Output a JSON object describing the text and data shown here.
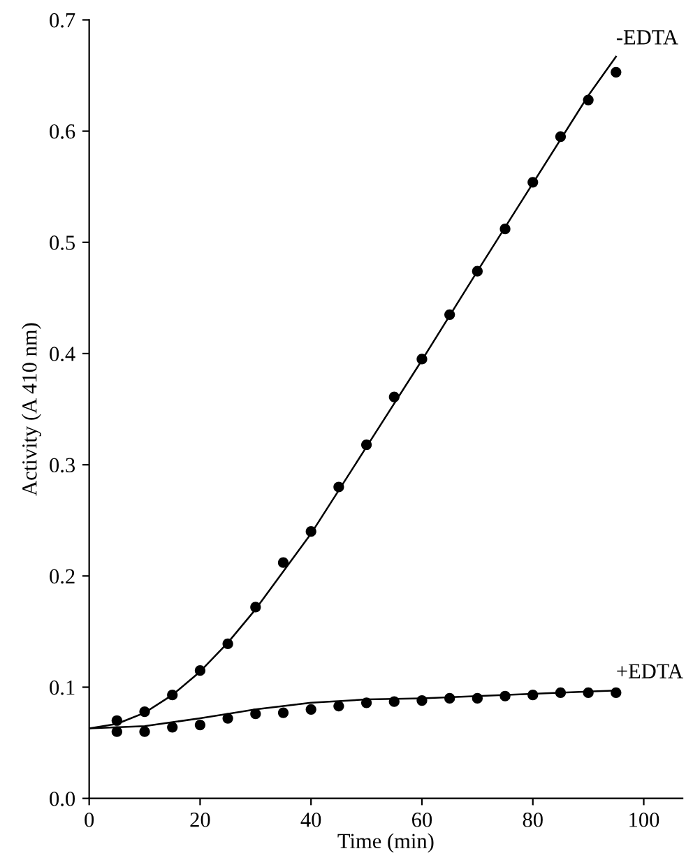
{
  "chart_data": {
    "type": "scatter",
    "xlabel": "Time (min)",
    "ylabel": "Activity (A 410 nm)",
    "xlim": [
      0,
      107
    ],
    "ylim": [
      0,
      0.7
    ],
    "xticks": [
      0,
      20,
      40,
      60,
      80,
      100
    ],
    "yticks": [
      {
        "value": 0,
        "label": "0.0"
      },
      0.1,
      0.2,
      0.3,
      0.4,
      0.5,
      0.6,
      0.7
    ],
    "grid": false,
    "legend": false,
    "marker": "circle",
    "series": [
      {
        "color": "#000000",
        "x": [
          5,
          10,
          15,
          20,
          25,
          30,
          35,
          40,
          45,
          50,
          55,
          60,
          65,
          70,
          75,
          80,
          85,
          90,
          95
        ],
        "values": [
          0.07,
          0.078,
          0.093,
          0.115,
          0.139,
          0.172,
          0.212,
          0.24,
          0.28,
          0.318,
          0.361,
          0.395,
          0.435,
          0.474,
          0.512,
          0.554,
          0.595,
          0.628,
          0.653
        ]
      },
      {
        "color": "#000000",
        "x": [
          5,
          10,
          15,
          20,
          25,
          30,
          35,
          40,
          45,
          50,
          55,
          60,
          65,
          70,
          75,
          80,
          85,
          90,
          95
        ],
        "values": [
          0.06,
          0.06,
          0.064,
          0.066,
          0.072,
          0.076,
          0.077,
          0.08,
          0.083,
          0.086,
          0.087,
          0.088,
          0.09,
          0.09,
          0.092,
          0.093,
          0.095,
          0.095,
          0.095
        ]
      },
      {
        "type": "line",
        "marker": "none",
        "color": "#000000",
        "x": [
          0,
          5,
          10,
          15,
          20,
          25,
          30,
          40,
          50,
          60,
          70,
          80,
          90,
          95
        ],
        "values": [
          0.063,
          0.067,
          0.077,
          0.093,
          0.114,
          0.14,
          0.17,
          0.238,
          0.316,
          0.394,
          0.474,
          0.553,
          0.632,
          0.667
        ]
      },
      {
        "type": "line",
        "marker": "none",
        "color": "#000000",
        "x": [
          0,
          10,
          20,
          30,
          40,
          50,
          60,
          70,
          80,
          90,
          95
        ],
        "values": [
          0.063,
          0.065,
          0.072,
          0.08,
          0.086,
          0.089,
          0.09,
          0.092,
          0.094,
          0.096,
          0.097
        ]
      }
    ],
    "annotations": [
      {
        "text": "-EDTA",
        "x": 95,
        "y": 0.667
      },
      {
        "text": "+EDTA",
        "x": 95,
        "y": 0.097
      }
    ]
  }
}
